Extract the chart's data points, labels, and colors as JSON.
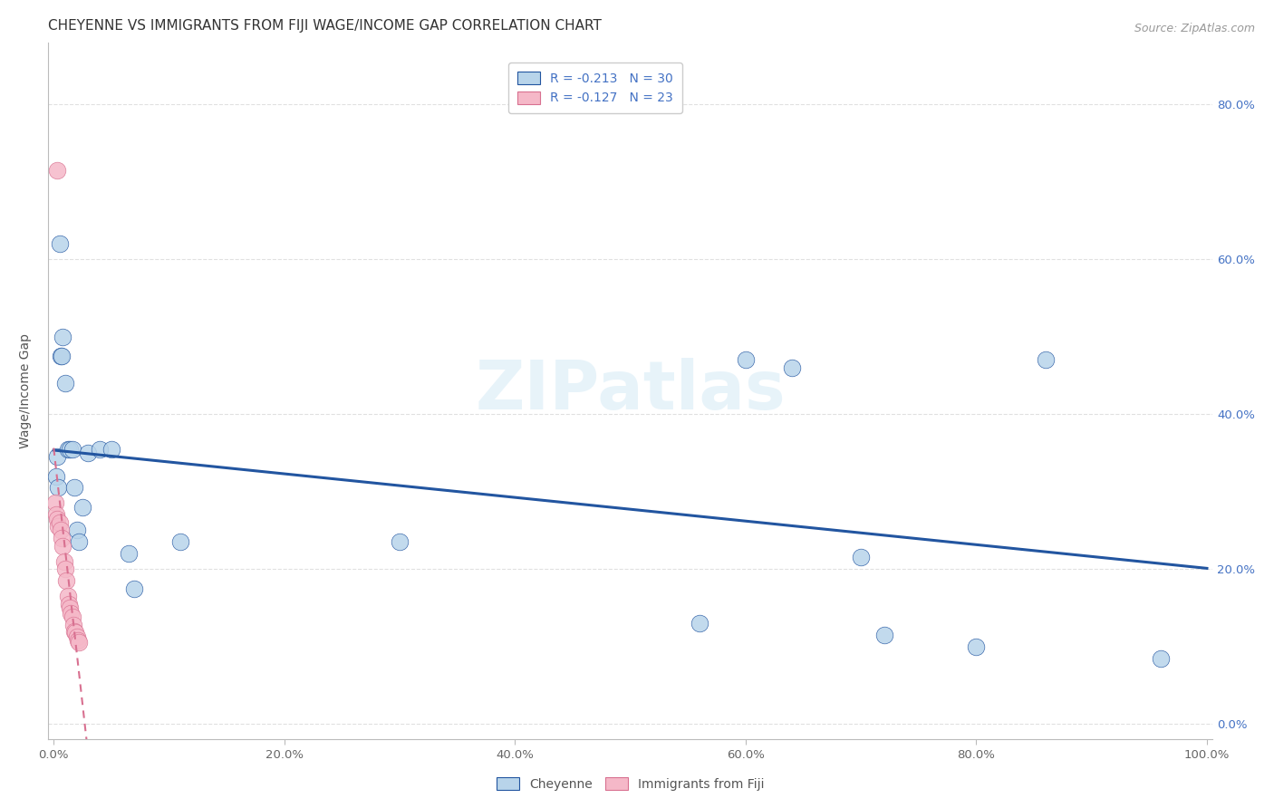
{
  "title": "CHEYENNE VS IMMIGRANTS FROM FIJI WAGE/INCOME GAP CORRELATION CHART",
  "source": "Source: ZipAtlas.com",
  "ylabel": "Wage/Income Gap",
  "legend_cheyenne": "Cheyenne",
  "legend_fiji": "Immigrants from Fiji",
  "r_cheyenne": -0.213,
  "n_cheyenne": 30,
  "r_fiji": -0.127,
  "n_fiji": 23,
  "color_cheyenne": "#b8d4ea",
  "color_fiji": "#f5b8c8",
  "line_color_cheyenne": "#2255a0",
  "line_color_fiji": "#d87090",
  "background_color": "#ffffff",
  "grid_color": "#e0e0e0",
  "cheyenne_x": [
    0.002,
    0.003,
    0.004,
    0.005,
    0.006,
    0.007,
    0.008,
    0.01,
    0.012,
    0.014,
    0.016,
    0.018,
    0.02,
    0.022,
    0.025,
    0.03,
    0.04,
    0.05,
    0.065,
    0.07,
    0.11,
    0.3,
    0.56,
    0.6,
    0.64,
    0.7,
    0.72,
    0.8,
    0.86,
    0.96
  ],
  "cheyenne_y": [
    0.32,
    0.345,
    0.305,
    0.62,
    0.475,
    0.475,
    0.5,
    0.44,
    0.355,
    0.355,
    0.355,
    0.305,
    0.25,
    0.235,
    0.28,
    0.35,
    0.355,
    0.355,
    0.22,
    0.175,
    0.235,
    0.235,
    0.13,
    0.47,
    0.46,
    0.215,
    0.115,
    0.1,
    0.47,
    0.085
  ],
  "fiji_x": [
    0.001,
    0.002,
    0.003,
    0.004,
    0.005,
    0.006,
    0.007,
    0.008,
    0.009,
    0.01,
    0.011,
    0.012,
    0.013,
    0.014,
    0.015,
    0.016,
    0.017,
    0.018,
    0.019,
    0.02,
    0.021,
    0.022,
    0.003
  ],
  "fiji_y": [
    0.285,
    0.27,
    0.265,
    0.255,
    0.26,
    0.25,
    0.24,
    0.23,
    0.21,
    0.2,
    0.185,
    0.165,
    0.155,
    0.15,
    0.143,
    0.138,
    0.128,
    0.12,
    0.118,
    0.112,
    0.108,
    0.105,
    0.715
  ],
  "xlim": [
    -0.005,
    1.005
  ],
  "ylim": [
    -0.02,
    0.88
  ],
  "xticks": [
    0.0,
    0.2,
    0.4,
    0.6,
    0.8,
    1.0
  ],
  "xtick_labels": [
    "0.0%",
    "20.0%",
    "40.0%",
    "60.0%",
    "80.0%",
    "100.0%"
  ],
  "yticks": [
    0.0,
    0.2,
    0.4,
    0.6,
    0.8
  ],
  "ytick_labels_right": [
    "0.0%",
    "20.0%",
    "40.0%",
    "60.0%",
    "80.0%"
  ],
  "watermark_text": "ZIPatlas",
  "title_fontsize": 11,
  "axis_label_fontsize": 10,
  "tick_fontsize": 9.5,
  "legend_fontsize": 10,
  "source_fontsize": 9
}
